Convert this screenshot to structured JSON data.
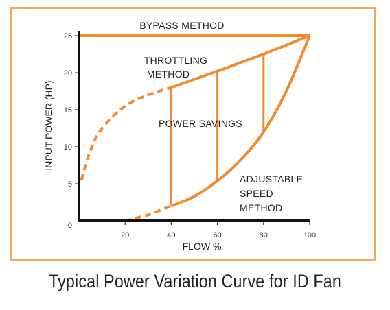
{
  "caption": "Typical Power Variation Curve for ID Fan",
  "chart_data": {
    "type": "line",
    "title": "",
    "xlabel": "FLOW %",
    "ylabel": "INPUT POWER (HP)",
    "xlim": [
      0,
      100
    ],
    "ylim": [
      0,
      25
    ],
    "x_ticks": [
      "20",
      "40",
      "60",
      "80",
      "100"
    ],
    "y_ticks": [
      "0",
      "5",
      "10",
      "15",
      "20",
      "25"
    ],
    "grid": false,
    "series": [
      {
        "name": "BYPASS METHOD",
        "x": [
          0,
          100
        ],
        "y": [
          25,
          25
        ],
        "style": "solid"
      },
      {
        "name": "THROTTLING METHOD",
        "x": [
          40,
          60,
          80,
          100
        ],
        "y": [
          18,
          20.2,
          22.5,
          25
        ],
        "style": "solid"
      },
      {
        "name": "THROTTLING METHOD (extrapolated)",
        "x": [
          1,
          5,
          10,
          20,
          30,
          40
        ],
        "y": [
          5.5,
          9.5,
          12.5,
          15.5,
          17,
          18
        ],
        "style": "dashed"
      },
      {
        "name": "ADJUSTABLE SPEED METHOD",
        "x": [
          40,
          50,
          60,
          70,
          80,
          90,
          100
        ],
        "y": [
          2,
          3.3,
          5.4,
          8.2,
          12,
          17.6,
          25
        ],
        "style": "solid"
      },
      {
        "name": "ADJUSTABLE SPEED METHOD (extrapolated)",
        "x": [
          20,
          25,
          30,
          35,
          40
        ],
        "y": [
          0,
          0.4,
          0.8,
          1.4,
          2
        ],
        "style": "dashed"
      }
    ],
    "power_savings_lines": [
      {
        "x": 40,
        "y_low": 2,
        "y_high": 18
      },
      {
        "x": 60,
        "y_low": 5.4,
        "y_high": 20.2
      },
      {
        "x": 80,
        "y_low": 12,
        "y_high": 22.5
      }
    ],
    "annotations": {
      "bypass": "BYPASS METHOD",
      "throttling_1": "THROTTLING",
      "throttling_2": "METHOD",
      "savings": "POWER SAVINGS",
      "adjustable_1": "ADJUSTABLE",
      "adjustable_2": "SPEED",
      "adjustable_3": "METHOD"
    },
    "colors": {
      "curve": "#f28a30",
      "axis": "#111111",
      "frame": "#f4a85a"
    }
  }
}
